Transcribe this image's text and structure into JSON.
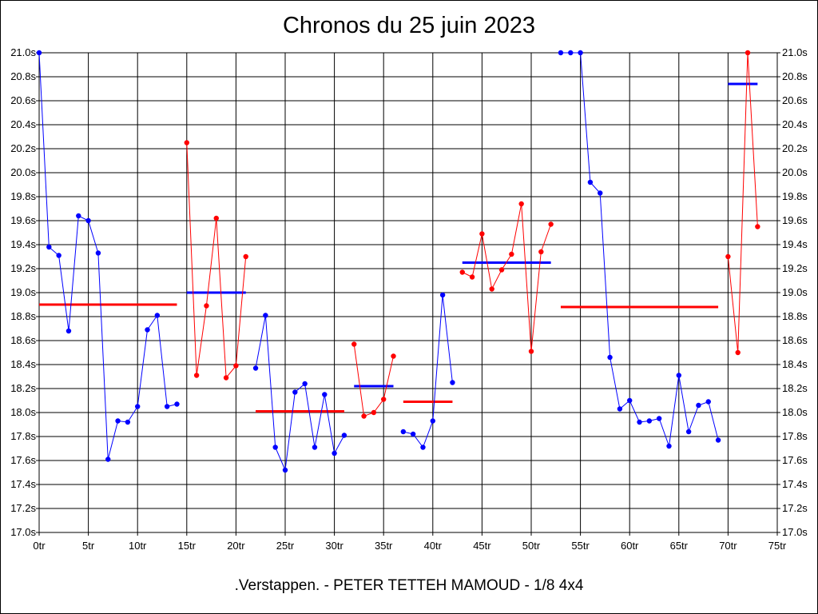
{
  "chart_data": {
    "type": "line",
    "title": "Chronos du 25 juin 2023",
    "footer": ".Verstappen. - PETER TETTEH MAMOUD - 1/8 4x4",
    "xlim": [
      0,
      75
    ],
    "ylim": [
      17.0,
      21.0
    ],
    "x_ticks": [
      0,
      5,
      10,
      15,
      20,
      25,
      30,
      35,
      40,
      45,
      50,
      55,
      60,
      65,
      70,
      75
    ],
    "x_tick_labels": [
      "0tr",
      "5tr",
      "10tr",
      "15tr",
      "20tr",
      "25tr",
      "30tr",
      "35tr",
      "40tr",
      "45tr",
      "50tr",
      "55tr",
      "60tr",
      "65tr",
      "70tr",
      "75tr"
    ],
    "y_ticks": [
      17.0,
      17.2,
      17.4,
      17.6,
      17.8,
      18.0,
      18.2,
      18.4,
      18.6,
      18.8,
      19.0,
      19.2,
      19.4,
      19.6,
      19.8,
      20.0,
      20.2,
      20.4,
      20.6,
      20.8,
      21.0
    ],
    "y_tick_labels": [
      "17.0s",
      "17.2s",
      "17.4s",
      "17.6s",
      "17.8s",
      "18.0s",
      "18.2s",
      "18.4s",
      "18.6s",
      "18.8s",
      "19.0s",
      "19.2s",
      "19.4s",
      "19.6s",
      "19.8s",
      "20.0s",
      "20.2s",
      "20.4s",
      "20.6s",
      "20.8s",
      "21.0s"
    ],
    "grid": true,
    "colors": {
      "blue": "#0000ff",
      "red": "#ff0000"
    },
    "series": [
      {
        "color": "blue",
        "x": [
          0,
          1,
          2,
          3,
          4,
          5,
          6,
          7,
          8,
          9,
          10,
          11,
          12,
          13,
          14
        ],
        "values": [
          21.0,
          19.38,
          19.31,
          18.68,
          19.64,
          19.6,
          19.33,
          17.61,
          17.93,
          17.92,
          18.05,
          18.69,
          18.81,
          18.05,
          18.07
        ]
      },
      {
        "color": "red",
        "x": [
          15,
          16,
          17,
          18,
          19,
          20,
          21
        ],
        "values": [
          20.25,
          18.31,
          18.89,
          19.62,
          18.29,
          18.39,
          19.3
        ]
      },
      {
        "color": "blue",
        "x": [
          22,
          23,
          24,
          25,
          26,
          27,
          28,
          29,
          30,
          31
        ],
        "values": [
          18.37,
          18.81,
          17.71,
          17.52,
          18.17,
          18.24,
          17.71,
          18.15,
          17.66,
          17.81
        ]
      },
      {
        "color": "red",
        "x": [
          32,
          33,
          34,
          35,
          36
        ],
        "values": [
          18.57,
          17.97,
          18.0,
          18.11,
          18.47
        ]
      },
      {
        "color": "blue",
        "x": [
          37,
          38,
          39,
          40,
          41,
          42
        ],
        "values": [
          17.84,
          17.82,
          17.71,
          17.93,
          18.98,
          18.25
        ]
      },
      {
        "color": "red",
        "x": [
          43,
          44,
          45,
          46,
          47,
          48,
          49,
          50,
          51,
          52
        ],
        "values": [
          19.17,
          19.13,
          19.49,
          19.03,
          19.19,
          19.32,
          19.74,
          18.51,
          19.34,
          19.57
        ]
      },
      {
        "color": "blue",
        "x": [
          53,
          54,
          55,
          56,
          57,
          58,
          59,
          60,
          61,
          62,
          63,
          64,
          65,
          66,
          67,
          68,
          69
        ],
        "values": [
          21.0,
          21.0,
          21.0,
          19.92,
          19.83,
          18.46,
          18.03,
          18.1,
          17.92,
          17.93,
          17.95,
          17.72,
          18.31,
          17.84,
          18.06,
          18.09,
          17.77
        ]
      },
      {
        "color": "red",
        "x": [
          70,
          71,
          72,
          73
        ],
        "values": [
          19.3,
          18.5,
          21.0,
          19.55
        ]
      }
    ],
    "averages": [
      {
        "color": "red",
        "x_start": 0,
        "x_end": 14,
        "value": 18.9
      },
      {
        "color": "blue",
        "x_start": 15,
        "x_end": 21,
        "value": 19.0
      },
      {
        "color": "red",
        "x_start": 22,
        "x_end": 31,
        "value": 18.01
      },
      {
        "color": "blue",
        "x_start": 32,
        "x_end": 36,
        "value": 18.22
      },
      {
        "color": "red",
        "x_start": 37,
        "x_end": 42,
        "value": 18.09
      },
      {
        "color": "blue",
        "x_start": 43,
        "x_end": 52,
        "value": 19.25
      },
      {
        "color": "red",
        "x_start": 53,
        "x_end": 69,
        "value": 18.88
      },
      {
        "color": "blue",
        "x_start": 70,
        "x_end": 73,
        "value": 20.74
      }
    ]
  }
}
